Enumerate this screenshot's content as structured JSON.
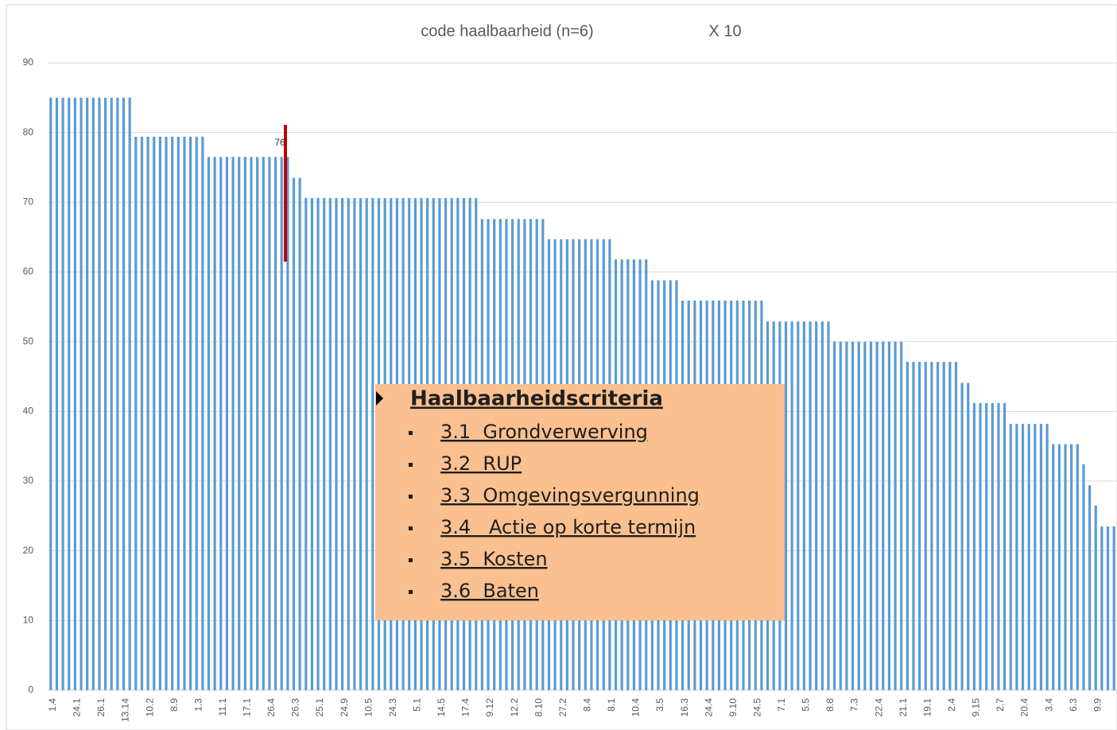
{
  "chart_data": {
    "type": "bar",
    "title": "code haalbaarheid (n=6)",
    "subtitle": "X 10",
    "categories": [
      "1.4",
      null,
      null,
      null,
      "24.1",
      null,
      null,
      null,
      "26.1",
      null,
      null,
      null,
      "13.14",
      null,
      null,
      null,
      "10.2",
      null,
      null,
      null,
      "8.9",
      null,
      null,
      null,
      "1.3",
      null,
      null,
      null,
      "11.1",
      null,
      null,
      null,
      "17.1",
      null,
      null,
      null,
      "26.4",
      null,
      null,
      null,
      "26.3",
      null,
      null,
      null,
      "25.1",
      null,
      null,
      null,
      "24.9",
      null,
      null,
      null,
      "10.5",
      null,
      null,
      null,
      "24.3",
      null,
      null,
      null,
      "5.1",
      null,
      null,
      null,
      "14.5",
      null,
      null,
      null,
      "17.4",
      null,
      null,
      null,
      "9.12",
      null,
      null,
      null,
      "12.2",
      null,
      null,
      null,
      "8.10",
      null,
      null,
      null,
      "27.2",
      null,
      null,
      null,
      "8.4",
      null,
      null,
      null,
      "8.1",
      null,
      null,
      null,
      "10.4",
      null,
      null,
      null,
      "3.5",
      null,
      null,
      null,
      "16.3",
      null,
      null,
      null,
      "24.4",
      null,
      null,
      null,
      "9.10",
      null,
      null,
      null,
      "24.5",
      null,
      null,
      null,
      "7.1",
      null,
      null,
      null,
      "5.5",
      null,
      null,
      null,
      "8.8",
      null,
      null,
      null,
      "7.3",
      null,
      null,
      null,
      "22.4",
      null,
      null,
      null,
      "21.1",
      null,
      null,
      null,
      "19.1",
      null,
      null,
      null,
      "2.4",
      null,
      null,
      null,
      "9.15",
      null,
      null,
      null,
      "2.7",
      null,
      null,
      null,
      "20.4",
      null,
      null,
      null,
      "3.4",
      null,
      null,
      null,
      "6.3",
      null,
      null,
      null,
      "9.9",
      null,
      null,
      null
    ],
    "values": [
      85,
      85,
      85,
      85,
      85,
      85,
      85,
      85,
      85,
      85,
      85,
      85,
      85,
      85,
      79.4,
      79.4,
      79.4,
      79.4,
      79.4,
      79.4,
      79.4,
      79.4,
      79.4,
      79.4,
      79.4,
      79.4,
      76.5,
      76.5,
      76.5,
      76.5,
      76.5,
      76.5,
      76.5,
      76.5,
      76.5,
      76.5,
      76.5,
      76.5,
      76.5,
      76.5,
      73.5,
      73.5,
      70.6,
      70.6,
      70.6,
      70.6,
      70.6,
      70.6,
      70.6,
      70.6,
      70.6,
      70.6,
      70.6,
      70.6,
      70.6,
      70.6,
      70.6,
      70.6,
      70.6,
      70.6,
      70.6,
      70.6,
      70.6,
      70.6,
      70.6,
      70.6,
      70.6,
      70.6,
      70.6,
      70.6,
      70.6,
      67.6,
      67.6,
      67.6,
      67.6,
      67.6,
      67.6,
      67.6,
      67.6,
      67.6,
      67.6,
      67.6,
      64.7,
      64.7,
      64.7,
      64.7,
      64.7,
      64.7,
      64.7,
      64.7,
      64.7,
      64.7,
      64.7,
      61.8,
      61.8,
      61.8,
      61.8,
      61.8,
      61.8,
      58.8,
      58.8,
      58.8,
      58.8,
      58.8,
      55.9,
      55.9,
      55.9,
      55.9,
      55.9,
      55.9,
      55.9,
      55.9,
      55.9,
      55.9,
      55.9,
      55.9,
      55.9,
      55.9,
      52.9,
      52.9,
      52.9,
      52.9,
      52.9,
      52.9,
      52.9,
      52.9,
      52.9,
      52.9,
      52.9,
      50,
      50,
      50,
      50,
      50,
      50,
      50,
      50,
      50,
      50,
      50,
      50,
      47.1,
      47.1,
      47.1,
      47.1,
      47.1,
      47.1,
      47.1,
      47.1,
      47.1,
      44.1,
      44.1,
      41.2,
      41.2,
      41.2,
      41.2,
      41.2,
      41.2,
      38.2,
      38.2,
      38.2,
      38.2,
      38.2,
      38.2,
      38.2,
      35.3,
      35.3,
      35.3,
      35.3,
      35.3,
      32.4,
      29.4,
      26.5,
      23.5,
      23.5,
      23.5
    ],
    "color": "#5b9bd5",
    "ylim": [
      0,
      90
    ],
    "yticks": [
      0,
      10,
      20,
      30,
      40,
      50,
      60,
      70,
      80,
      90
    ],
    "grid": true,
    "annotation": "76"
  },
  "callout": {
    "title": "Haalbaarheidscriteria",
    "items": [
      "3.1  Grondverwerving",
      "3.2  RUP",
      "3.3  Omgevingsvergunning",
      "3.4   Actie op korte termijn",
      "3.5  Kosten",
      "3.6  Baten"
    ]
  }
}
